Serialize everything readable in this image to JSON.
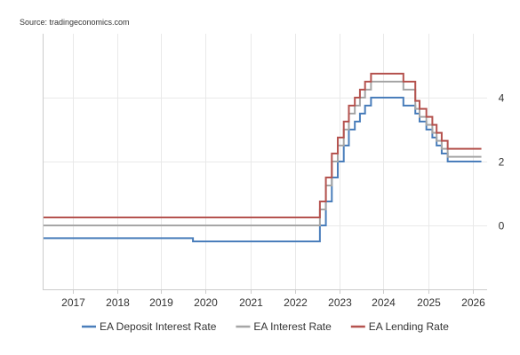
{
  "source": "Source: tradingeconomics.com",
  "chart_data": {
    "type": "line",
    "title": "",
    "xlabel": "",
    "ylabel": "",
    "x_range": [
      "2016-05-01",
      "2026-05-01"
    ],
    "ylim": [
      -2,
      6
    ],
    "x_ticks": [
      "2017",
      "2018",
      "2019",
      "2020",
      "2021",
      "2022",
      "2023",
      "2024",
      "2025",
      "2026"
    ],
    "y_ticks": [
      0,
      2,
      4
    ],
    "y_axis_position": "right",
    "grid": true,
    "legend": "bottom",
    "step": true,
    "series": [
      {
        "name": "EA Deposit Interest Rate",
        "color": "#4a7ebb",
        "points": [
          [
            "2016-05-01",
            -0.4
          ],
          [
            "2019-09-18",
            -0.5
          ],
          [
            "2022-07-27",
            0.0
          ],
          [
            "2022-09-14",
            0.75
          ],
          [
            "2022-11-02",
            1.5
          ],
          [
            "2022-12-21",
            2.0
          ],
          [
            "2023-02-08",
            2.5
          ],
          [
            "2023-03-22",
            3.0
          ],
          [
            "2023-05-10",
            3.25
          ],
          [
            "2023-06-21",
            3.5
          ],
          [
            "2023-08-02",
            3.75
          ],
          [
            "2023-09-20",
            4.0
          ],
          [
            "2024-06-12",
            3.75
          ],
          [
            "2024-09-18",
            3.5
          ],
          [
            "2024-10-23",
            3.25
          ],
          [
            "2024-12-18",
            3.0
          ],
          [
            "2025-02-05",
            2.75
          ],
          [
            "2025-03-12",
            2.5
          ],
          [
            "2025-04-23",
            2.25
          ],
          [
            "2025-06-11",
            2.0
          ],
          [
            "2026-03-15",
            2.0
          ]
        ]
      },
      {
        "name": "EA Interest Rate",
        "color": "#a6a6a6",
        "points": [
          [
            "2016-05-01",
            0.0
          ],
          [
            "2022-07-27",
            0.5
          ],
          [
            "2022-09-14",
            1.25
          ],
          [
            "2022-11-02",
            2.0
          ],
          [
            "2022-12-21",
            2.5
          ],
          [
            "2023-02-08",
            3.0
          ],
          [
            "2023-03-22",
            3.5
          ],
          [
            "2023-05-10",
            3.75
          ],
          [
            "2023-06-21",
            4.0
          ],
          [
            "2023-08-02",
            4.25
          ],
          [
            "2023-09-20",
            4.5
          ],
          [
            "2024-06-12",
            4.25
          ],
          [
            "2024-09-18",
            3.65
          ],
          [
            "2024-10-23",
            3.4
          ],
          [
            "2024-12-18",
            3.15
          ],
          [
            "2025-02-05",
            2.9
          ],
          [
            "2025-03-12",
            2.65
          ],
          [
            "2025-04-23",
            2.4
          ],
          [
            "2025-06-11",
            2.15
          ],
          [
            "2026-03-15",
            2.15
          ]
        ]
      },
      {
        "name": "EA Lending Rate",
        "color": "#b5534f",
        "points": [
          [
            "2016-05-01",
            0.25
          ],
          [
            "2022-07-27",
            0.75
          ],
          [
            "2022-09-14",
            1.5
          ],
          [
            "2022-11-02",
            2.25
          ],
          [
            "2022-12-21",
            2.75
          ],
          [
            "2023-02-08",
            3.25
          ],
          [
            "2023-03-22",
            3.75
          ],
          [
            "2023-05-10",
            4.0
          ],
          [
            "2023-06-21",
            4.25
          ],
          [
            "2023-08-02",
            4.5
          ],
          [
            "2023-09-20",
            4.75
          ],
          [
            "2024-06-12",
            4.5
          ],
          [
            "2024-09-18",
            3.9
          ],
          [
            "2024-10-23",
            3.65
          ],
          [
            "2024-12-18",
            3.4
          ],
          [
            "2025-02-05",
            3.15
          ],
          [
            "2025-03-12",
            2.9
          ],
          [
            "2025-04-23",
            2.65
          ],
          [
            "2025-06-11",
            2.4
          ],
          [
            "2026-03-15",
            2.4
          ]
        ]
      }
    ]
  }
}
